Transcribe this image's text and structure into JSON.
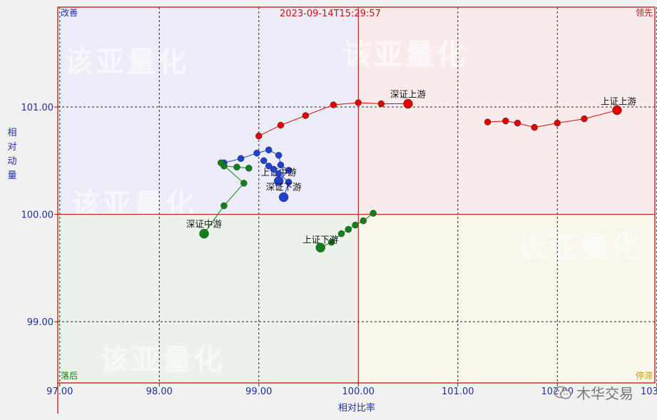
{
  "chart_data": {
    "type": "scatter",
    "title": "2023-09-14T15:29:57",
    "xlabel": "相对比率",
    "ylabel": "相对动量",
    "xlim": [
      96.98,
      102.98
    ],
    "ylim": [
      98.43,
      101.93
    ],
    "xticks": [
      "97.00",
      "98.00",
      "99.00",
      "100.00",
      "101.00",
      "102.00",
      "103.00"
    ],
    "yticks": [
      "99.00",
      "100.00",
      "101.00"
    ],
    "grid": true,
    "center": [
      100.0,
      100.0
    ],
    "quadrants": {
      "top_left": "改善",
      "top_right": "领先",
      "bottom_left": "落后",
      "bottom_right": "停滞"
    },
    "quadrant_colors": {
      "top_left": "#ececf8",
      "top_right": "#f9ebec",
      "bottom_left": "#eaf2ea",
      "bottom_right": "#f9f6ec"
    },
    "watermarks": [
      "该亚量化",
      "该亚量化",
      "该亚量化",
      "该亚量化",
      "该亚量化"
    ],
    "series": [
      {
        "name": "深证上游",
        "color": "#e00000",
        "points": [
          [
            99.0,
            100.73
          ],
          [
            99.22,
            100.83
          ],
          [
            99.47,
            100.92
          ],
          [
            99.75,
            101.02
          ],
          [
            100.0,
            101.04
          ],
          [
            100.23,
            101.03
          ],
          [
            100.5,
            101.03
          ]
        ]
      },
      {
        "name": "上证上游",
        "color": "#e00000",
        "points": [
          [
            101.3,
            100.86
          ],
          [
            101.48,
            100.87
          ],
          [
            101.6,
            100.85
          ],
          [
            101.77,
            100.81
          ],
          [
            102.0,
            100.85
          ],
          [
            102.27,
            100.89
          ],
          [
            102.6,
            100.97
          ]
        ]
      },
      {
        "name": "上证中游",
        "color": "#2040d0",
        "points": [
          [
            98.65,
            100.48
          ],
          [
            98.82,
            100.52
          ],
          [
            98.98,
            100.57
          ],
          [
            99.1,
            100.6
          ],
          [
            99.2,
            100.55
          ],
          [
            99.22,
            100.46
          ],
          [
            99.3,
            100.41
          ],
          [
            99.2,
            100.31
          ]
        ]
      },
      {
        "name": "深证下游",
        "color": "#2040d0",
        "points": [
          [
            99.05,
            100.5
          ],
          [
            99.1,
            100.45
          ],
          [
            99.15,
            100.42
          ],
          [
            99.2,
            100.38
          ],
          [
            99.3,
            100.3
          ],
          [
            99.25,
            100.16
          ]
        ]
      },
      {
        "name": "深证中游",
        "color": "#10801a",
        "points": [
          [
            98.9,
            100.43
          ],
          [
            98.78,
            100.44
          ],
          [
            98.65,
            100.45
          ],
          [
            98.62,
            100.48
          ],
          [
            98.85,
            100.29
          ],
          [
            98.65,
            100.08
          ],
          [
            98.45,
            99.82
          ]
        ]
      },
      {
        "name": "上证下游",
        "color": "#10801a",
        "points": [
          [
            100.15,
            100.01
          ],
          [
            100.05,
            99.94
          ],
          [
            99.97,
            99.9
          ],
          [
            99.9,
            99.86
          ],
          [
            99.83,
            99.82
          ],
          [
            99.73,
            99.74
          ],
          [
            99.62,
            99.69
          ]
        ]
      }
    ]
  },
  "brand": {
    "text": "木华交易",
    "icon": "wechat-icon"
  }
}
